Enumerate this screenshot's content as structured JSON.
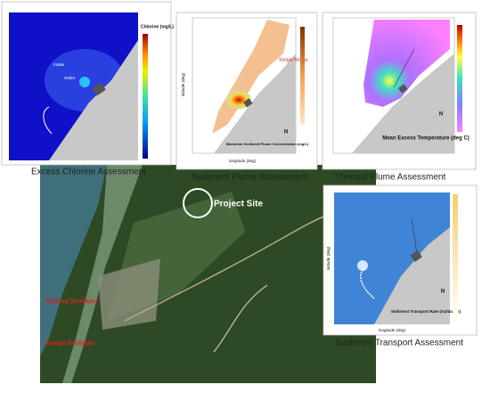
{
  "captions": {
    "chlorine": "Excess Chlorine Assessment",
    "sediment_plume": "Sediment Plume Assessment",
    "thermal_plume": "Thermal Plume Assessment",
    "sediment_transport": "Sediment Transport Assessment"
  },
  "site_map": {
    "project_site": "Project Site",
    "places": [
      "Tanjung Similajau",
      "Sungai Similajau"
    ]
  },
  "insets": {
    "chlorine": {
      "legend_title": "Chlorine (mg/L)",
      "labels": [
        "Intake",
        "Outlet"
      ]
    },
    "sediment_plume": {
      "annotation": "Sungai Nyalau",
      "legend_title": "Maximum Sediment Plume Concentration (mg/L)",
      "north": "N",
      "x_label": "longitude (deg)",
      "y_label": "latitude (deg)"
    },
    "thermal_plume": {
      "legend_title": "Mean Excess Temperature (deg C)",
      "north": "N"
    },
    "sediment_transport": {
      "legend_title": "Sediment Transport Rate (m3/day/m)",
      "north": "N",
      "x_label": "longitude (deg)",
      "y_label": "latitude (deg)"
    }
  }
}
